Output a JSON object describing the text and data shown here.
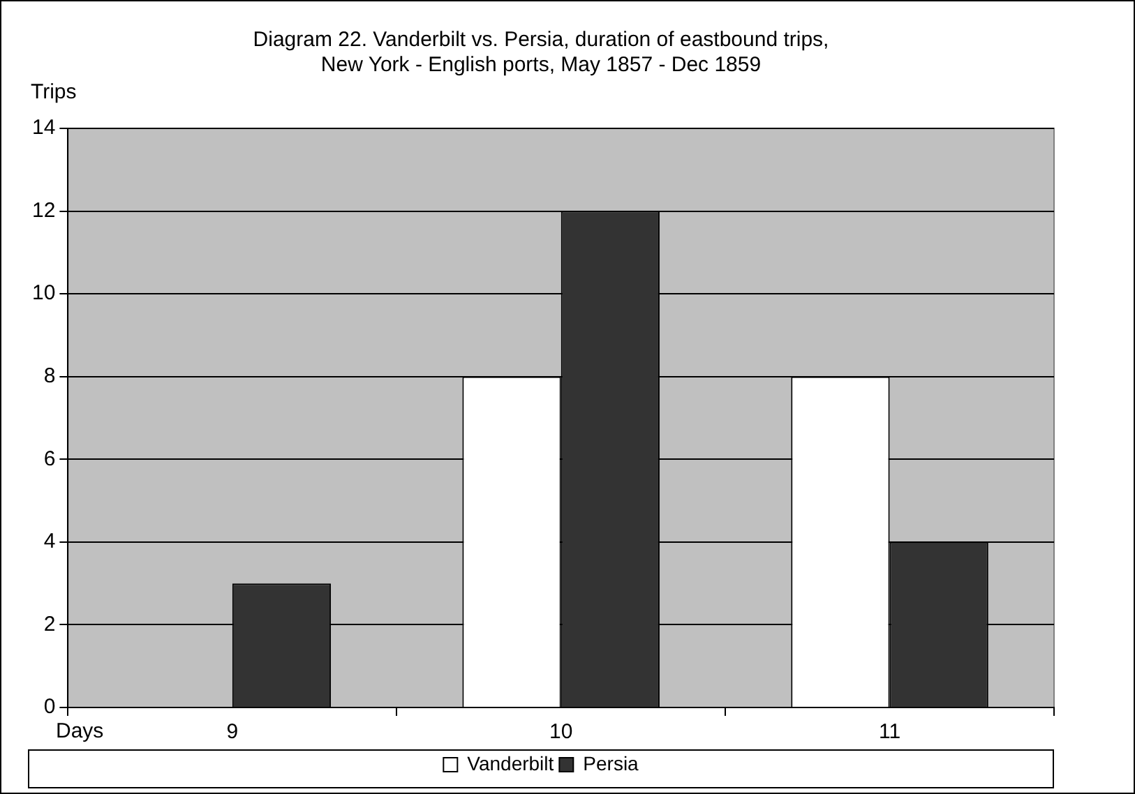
{
  "chart_data": {
    "type": "bar",
    "title": "Diagram 22. Vanderbilt vs. Persia, duration of eastbound trips,\nNew York - English ports, May 1857 - Dec 1859",
    "xlabel": "Days",
    "ylabel": "Trips",
    "categories": [
      "9",
      "10",
      "11"
    ],
    "series": [
      {
        "name": "Vanderbilt",
        "color": "#ffffff",
        "values": [
          0,
          8,
          8
        ]
      },
      {
        "name": "Persia",
        "color": "#333333",
        "values": [
          3,
          12,
          4
        ]
      }
    ],
    "ylim": [
      0,
      14
    ],
    "yticks": [
      0,
      2,
      4,
      6,
      8,
      10,
      12,
      14
    ],
    "grid": "y",
    "legend": "bottom"
  }
}
